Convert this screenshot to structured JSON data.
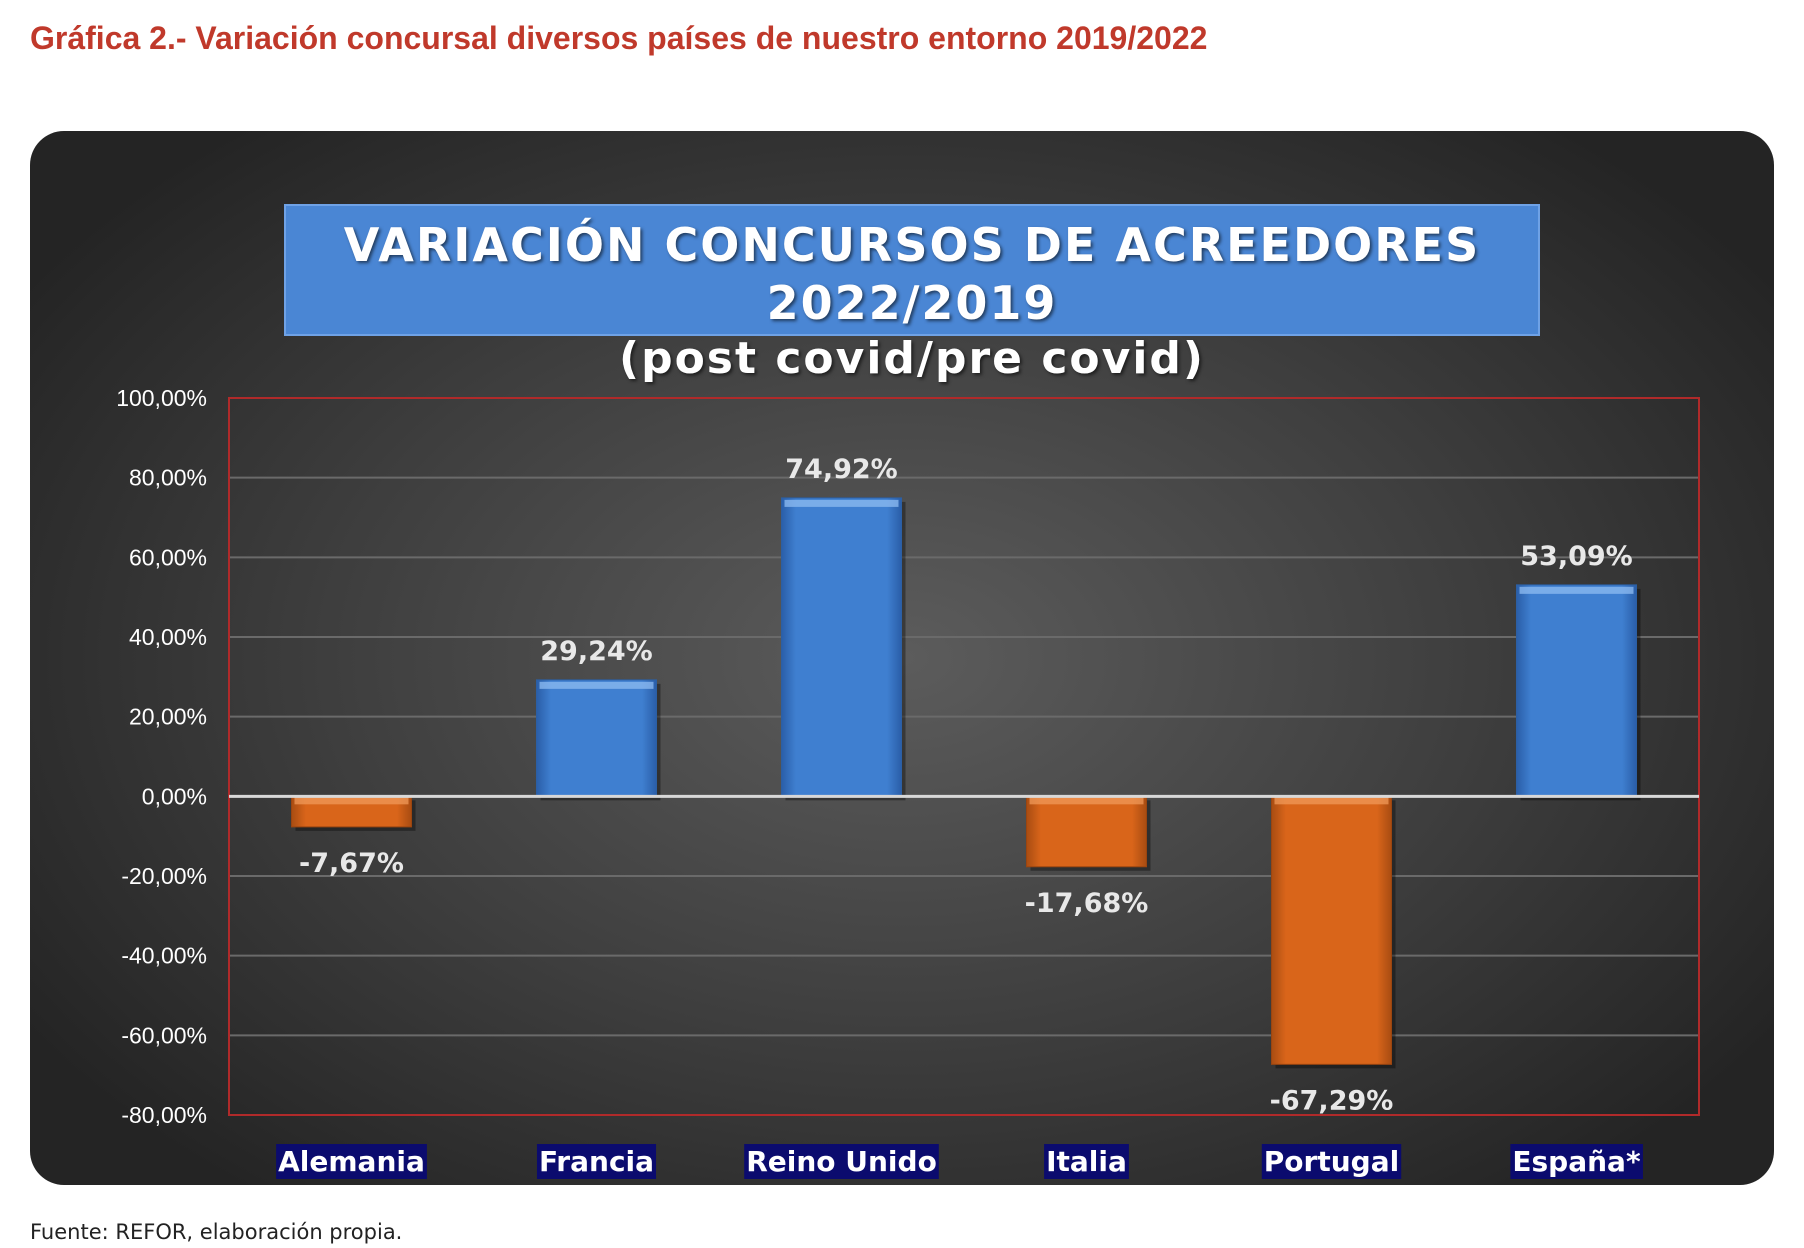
{
  "heading": "Gráfica 2.- Variación concursal diversos países de nuestro entorno 2019/2022",
  "source_note": "Fuente: REFOR, elaboración propia.",
  "colors": {
    "positive": "#3f7fd0",
    "negative": "#d9651a",
    "plot_border": "#b02a2a",
    "category_label_bg": "#0b0b6e"
  },
  "chart_data": {
    "type": "bar",
    "title": "VARIACIÓN CONCURSOS DE ACREEDORES 2022/2019",
    "subtitle": "(post covid/pre covid)",
    "categories": [
      "Alemania",
      "Francia",
      "Reino Unido",
      "Italia",
      "Portugal",
      "España*"
    ],
    "values": [
      -7.67,
      29.24,
      74.92,
      -17.68,
      -67.29,
      53.09
    ],
    "data_labels": [
      "-7,67%",
      "29,24%",
      "74,92%",
      "-17,68%",
      "-67,29%",
      "53,09%"
    ],
    "ylim": [
      -80,
      100
    ],
    "yticks": [
      100,
      80,
      60,
      40,
      20,
      0,
      -20,
      -40,
      -60,
      -80
    ],
    "ytick_labels": [
      "100,00%",
      "80,00%",
      "60,00%",
      "40,00%",
      "20,00%",
      "0,00%",
      "-20,00%",
      "-40,00%",
      "-60,00%",
      "-80,00%"
    ],
    "grid": true,
    "legend": "none"
  }
}
